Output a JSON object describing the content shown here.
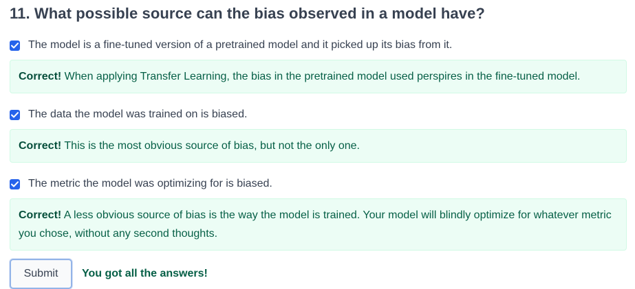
{
  "question": {
    "title": "11. What possible source can the bias observed in a model have?"
  },
  "options": [
    {
      "label": "The model is a fine-tuned version of a pretrained model and it picked up its bias from it.",
      "checked": true,
      "feedback_prefix": "Correct!",
      "feedback_text": " When applying Transfer Learning, the bias in the pretrained model used perspires in the fine-tuned model."
    },
    {
      "label": "The data the model was trained on is biased.",
      "checked": true,
      "feedback_prefix": "Correct!",
      "feedback_text": " This is the most obvious source of bias, but not the only one."
    },
    {
      "label": "The metric the model was optimizing for is biased.",
      "checked": true,
      "feedback_prefix": "Correct!",
      "feedback_text": " A less obvious source of bias is the way the model is trained. Your model will blindly optimize for whatever metric you chose, without any second thoughts."
    }
  ],
  "submit": {
    "label": "Submit"
  },
  "result": {
    "text": "You got all the answers!"
  },
  "colors": {
    "checkbox": "#2563eb",
    "feedback_bg": "#ecfdf5",
    "feedback_text": "#065f46"
  }
}
